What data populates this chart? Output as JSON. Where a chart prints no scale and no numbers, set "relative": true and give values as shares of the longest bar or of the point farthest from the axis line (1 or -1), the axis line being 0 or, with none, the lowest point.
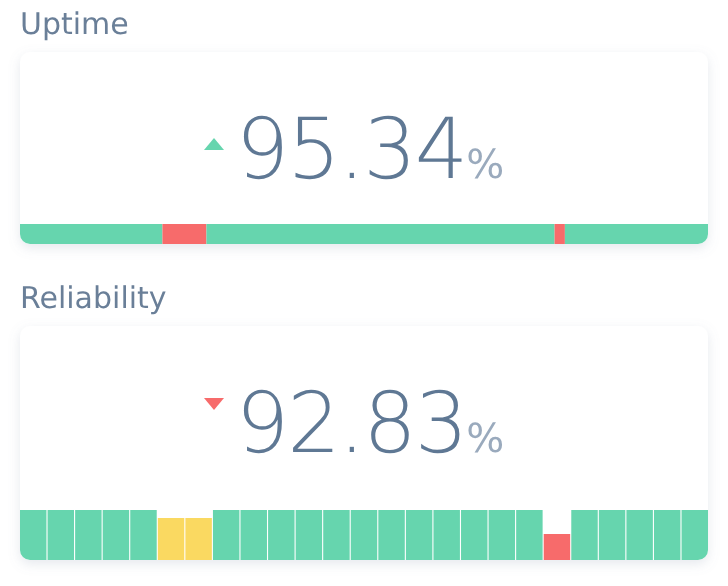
{
  "chart_data": [
    {
      "type": "bar",
      "title": "Uptime",
      "annotations": [
        "95.34",
        "%"
      ],
      "orientation": "horizontal",
      "stacked": true,
      "relative": true,
      "categories": [
        null
      ],
      "series": [
        {
          "color": "#66d5ae",
          "values": [
            0.207
          ]
        },
        {
          "color": "#f76b6b",
          "values": [
            0.064
          ]
        },
        {
          "color": "#66d5ae",
          "values": [
            0.506
          ]
        },
        {
          "color": "#f76b6b",
          "values": [
            0.015
          ]
        },
        {
          "color": "#66d5ae",
          "values": [
            0.208
          ]
        }
      ]
    },
    {
      "type": "bar",
      "title": "Reliability",
      "annotations": [
        "92.83",
        "%"
      ],
      "relative": true,
      "categories": [
        null,
        null,
        null,
        null,
        null,
        null,
        null,
        null,
        null,
        null,
        null,
        null,
        null,
        null,
        null,
        null,
        null,
        null,
        null,
        null,
        null,
        null,
        null,
        null,
        null
      ],
      "values": [
        1,
        1,
        1,
        1,
        1,
        0.84,
        0.84,
        1,
        1,
        1,
        1,
        1,
        1,
        1,
        1,
        1,
        1,
        1,
        1,
        0.52,
        1,
        1,
        1,
        1,
        1
      ],
      "colors": [
        "#66d5ae",
        "#66d5ae",
        "#66d5ae",
        "#66d5ae",
        "#66d5ae",
        "#fad961",
        "#fad961",
        "#66d5ae",
        "#66d5ae",
        "#66d5ae",
        "#66d5ae",
        "#66d5ae",
        "#66d5ae",
        "#66d5ae",
        "#66d5ae",
        "#66d5ae",
        "#66d5ae",
        "#66d5ae",
        "#66d5ae",
        "#f76b6b",
        "#66d5ae",
        "#66d5ae",
        "#66d5ae",
        "#66d5ae",
        "#66d5ae"
      ]
    }
  ]
}
